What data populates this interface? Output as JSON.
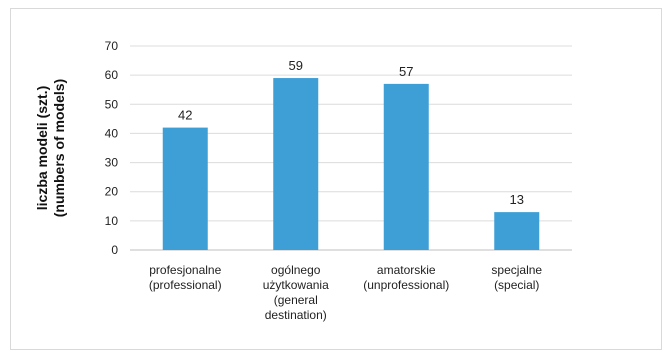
{
  "chart_data": {
    "type": "bar",
    "title": "",
    "ylabel_lines": [
      "liczba modeli (szt.)",
      "(numbers of models)"
    ],
    "xlabel": "",
    "ylim": [
      0,
      70
    ],
    "yticks": [
      0,
      10,
      20,
      30,
      40,
      50,
      60,
      70
    ],
    "grid": true,
    "bar_color": "#3e9fd6",
    "categories": [
      {
        "lines": [
          "profesjonalne",
          "(professional)"
        ]
      },
      {
        "lines": [
          "ogólnego",
          "użytkowania",
          "(general",
          "destination)"
        ]
      },
      {
        "lines": [
          "amatorskie",
          "(unprofessional)"
        ]
      },
      {
        "lines": [
          "specjalne",
          "(special)"
        ]
      }
    ],
    "values": [
      42,
      59,
      57,
      13
    ],
    "data_labels": [
      "42",
      "59",
      "57",
      "13"
    ]
  }
}
